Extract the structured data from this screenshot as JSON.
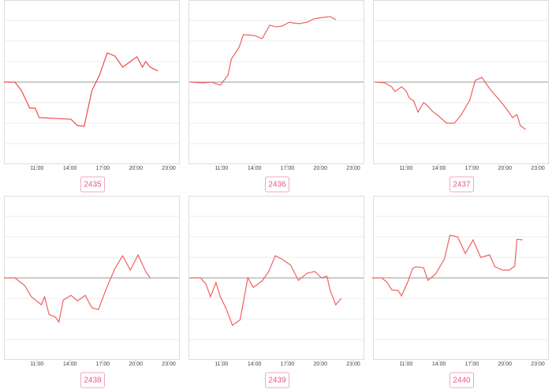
{
  "chart_data": [
    {
      "type": "line",
      "label": "2435",
      "color": "#f04848",
      "x": [
        8.0,
        9.0,
        9.6,
        10.35,
        10.85,
        11.2,
        14.1,
        14.7,
        15.3,
        16.0,
        16.7,
        17.4,
        18.1,
        18.8,
        20.1,
        20.6,
        20.9,
        21.3,
        22.0
      ],
      "values": [
        0,
        0,
        -0.42,
        -1.27,
        -1.27,
        -1.73,
        -1.81,
        -2.12,
        -2.15,
        -0.42,
        0.35,
        1.42,
        1.27,
        0.73,
        1.23,
        0.73,
        1.0,
        0.73,
        0.54
      ],
      "xlim": [
        8,
        24
      ],
      "ylim": [
        -4,
        4
      ],
      "yticks": [
        -3,
        -2,
        -1,
        0,
        1,
        2,
        3
      ],
      "xticks": [
        {
          "value": 11,
          "label": "11:00"
        },
        {
          "value": 14,
          "label": "14:00"
        },
        {
          "value": 17,
          "label": "17:00"
        },
        {
          "value": 20,
          "label": "20:00"
        },
        {
          "value": 23,
          "label": "23:00"
        }
      ],
      "grid": true
    },
    {
      "type": "line",
      "label": "2436",
      "color": "#f06060",
      "x": [
        8.1,
        9.35,
        10.1,
        10.9,
        11.6,
        11.9,
        12.6,
        13.0,
        14.0,
        14.7,
        15.4,
        16.0,
        16.5,
        17.2,
        17.5,
        18.1,
        18.8,
        19.4,
        20.2,
        20.9,
        21.4
      ],
      "values": [
        0,
        -0.04,
        0,
        -0.15,
        0.35,
        1.12,
        1.69,
        2.31,
        2.27,
        2.12,
        2.77,
        2.69,
        2.73,
        2.92,
        2.88,
        2.85,
        2.92,
        3.08,
        3.15,
        3.19,
        3.04
      ],
      "xlim": [
        8,
        24
      ],
      "ylim": [
        -4,
        4
      ],
      "yticks": [
        -3,
        -2,
        -1,
        0,
        1,
        2,
        3
      ],
      "xticks": [
        {
          "value": 11,
          "label": "11:00"
        },
        {
          "value": 14,
          "label": "14:00"
        },
        {
          "value": 17,
          "label": "17:00"
        },
        {
          "value": 20,
          "label": "20:00"
        },
        {
          "value": 23,
          "label": "23:00"
        }
      ],
      "grid": true
    },
    {
      "type": "line",
      "label": "2437",
      "color": "#f06060",
      "x": [
        8.2,
        9.1,
        9.7,
        10.0,
        10.6,
        11.0,
        11.3,
        11.7,
        12.1,
        12.6,
        12.9,
        13.4,
        13.9,
        14.7,
        15.4,
        16.0,
        16.8,
        17.3,
        17.9,
        18.7,
        19.4,
        20.1,
        20.7,
        21.1,
        21.4,
        21.9
      ],
      "values": [
        0,
        -0.04,
        -0.23,
        -0.46,
        -0.23,
        -0.42,
        -0.77,
        -0.92,
        -1.46,
        -1.0,
        -1.12,
        -1.42,
        -1.62,
        -2.0,
        -2.0,
        -1.62,
        -0.88,
        0.08,
        0.23,
        -0.38,
        -0.81,
        -1.27,
        -1.73,
        -1.58,
        -2.12,
        -2.31
      ],
      "xlim": [
        8,
        24
      ],
      "ylim": [
        -4,
        4
      ],
      "yticks": [
        -3,
        -2,
        -1,
        0,
        1,
        2,
        3
      ],
      "xticks": [
        {
          "value": 11,
          "label": "11:00"
        },
        {
          "value": 14,
          "label": "14:00"
        },
        {
          "value": 17,
          "label": "17:00"
        },
        {
          "value": 20,
          "label": "20:00"
        },
        {
          "value": 23,
          "label": "23:00"
        }
      ],
      "grid": true
    },
    {
      "type": "line",
      "label": "2438",
      "color": "#f06060",
      "x": [
        8.0,
        9.0,
        9.9,
        10.5,
        11.4,
        11.7,
        12.1,
        12.7,
        13.0,
        13.4,
        14.1,
        14.7,
        15.4,
        16.0,
        16.6,
        17.3,
        18.1,
        18.8,
        19.5,
        20.2,
        20.9,
        21.3
      ],
      "values": [
        0,
        0,
        -0.38,
        -0.92,
        -1.31,
        -0.92,
        -1.77,
        -1.92,
        -2.15,
        -1.08,
        -0.85,
        -1.12,
        -0.85,
        -1.46,
        -1.54,
        -0.54,
        0.46,
        1.08,
        0.38,
        1.12,
        0.31,
        0
      ],
      "xlim": [
        8,
        24
      ],
      "ylim": [
        -4,
        4
      ],
      "yticks": [
        -3,
        -2,
        -1,
        0,
        1,
        2,
        3
      ],
      "xticks": [
        {
          "value": 11,
          "label": "11:00"
        },
        {
          "value": 14,
          "label": "14:00"
        },
        {
          "value": 17,
          "label": "17:00"
        },
        {
          "value": 20,
          "label": "20:00"
        },
        {
          "value": 23,
          "label": "23:00"
        }
      ],
      "grid": true
    },
    {
      "type": "line",
      "label": "2439",
      "color": "#f06060",
      "x": [
        8.1,
        9.1,
        9.6,
        10.0,
        10.5,
        10.9,
        11.4,
        12.0,
        12.7,
        13.4,
        13.9,
        14.7,
        15.3,
        15.9,
        16.5,
        17.3,
        18.0,
        18.8,
        19.5,
        20.1,
        20.6,
        20.9,
        21.4,
        21.9
      ],
      "values": [
        0,
        0,
        -0.31,
        -0.92,
        -0.23,
        -0.92,
        -1.46,
        -2.31,
        -2.04,
        0,
        -0.46,
        -0.15,
        0.31,
        1.08,
        0.92,
        0.62,
        -0.12,
        0.23,
        0.31,
        0,
        0.08,
        -0.62,
        -1.31,
        -1.0
      ],
      "xlim": [
        8,
        24
      ],
      "ylim": [
        -4,
        4
      ],
      "yticks": [
        -3,
        -2,
        -1,
        0,
        1,
        2,
        3
      ],
      "xticks": [
        {
          "value": 11,
          "label": "11:00"
        },
        {
          "value": 14,
          "label": "14:00"
        },
        {
          "value": 17,
          "label": "17:00"
        },
        {
          "value": 20,
          "label": "20:00"
        },
        {
          "value": 23,
          "label": "23:00"
        }
      ],
      "grid": true
    },
    {
      "type": "line",
      "label": "2440",
      "color": "#f06060",
      "x": [
        7.9,
        8.8,
        9.3,
        9.7,
        10.3,
        10.6,
        11.2,
        11.6,
        11.9,
        12.6,
        13.0,
        13.7,
        14.5,
        15.0,
        15.7,
        16.4,
        17.1,
        17.8,
        18.6,
        19.1,
        19.8,
        20.4,
        20.9,
        21.1,
        21.6
      ],
      "values": [
        0,
        0,
        -0.23,
        -0.58,
        -0.62,
        -0.88,
        -0.15,
        0.46,
        0.54,
        0.5,
        -0.12,
        0.19,
        0.92,
        2.08,
        2.0,
        1.19,
        1.85,
        1.0,
        1.12,
        0.54,
        0.38,
        0.38,
        0.58,
        1.88,
        1.85
      ],
      "xlim": [
        8,
        24
      ],
      "ylim": [
        -4,
        4
      ],
      "yticks": [
        -3,
        -2,
        -1,
        0,
        1,
        2,
        3
      ],
      "xticks": [
        {
          "value": 11,
          "label": "11:00"
        },
        {
          "value": 14,
          "label": "14:00"
        },
        {
          "value": 17,
          "label": "17:00"
        },
        {
          "value": 20,
          "label": "20:00"
        },
        {
          "value": 23,
          "label": "23:00"
        }
      ],
      "grid": true
    }
  ]
}
